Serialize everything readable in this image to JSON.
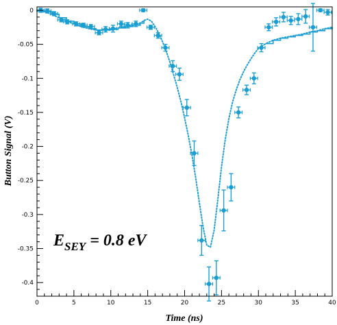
{
  "colors": {
    "series": "#1a9ed2",
    "axis": "#000000",
    "background": "#ffffff"
  },
  "annotation": {
    "text_main": "E",
    "text_sub": "SEY",
    "text_rest": " = 0.8 eV"
  },
  "chart_data": {
    "type": "scatter",
    "title": "",
    "xlabel": "Time (ns)",
    "ylabel": "Button Signal (V)",
    "xlim": [
      0,
      40
    ],
    "ylim": [
      -0.42,
      0.005
    ],
    "xticks": [
      0,
      5,
      10,
      15,
      20,
      25,
      30,
      35,
      40
    ],
    "xtick_labels": [
      "0",
      "5",
      "10",
      "15",
      "20",
      "25",
      "30",
      "35",
      "40"
    ],
    "yticks": [
      0,
      -0.05,
      -0.1,
      -0.15,
      -0.2,
      -0.25,
      -0.3,
      -0.35,
      -0.4
    ],
    "ytick_labels": [
      "0",
      "-0.05",
      "-0.1",
      "-0.15",
      "-0.2",
      "-0.25",
      "-0.3",
      "-0.35",
      "-0.4"
    ],
    "grid": false,
    "series": [
      {
        "kind": "measured",
        "points": [
          {
            "x": 0.5,
            "y": 0.0,
            "xerr": 0.5,
            "yerr": 0.003
          },
          {
            "x": 1.4,
            "y": -0.001,
            "xerr": 0.5,
            "yerr": 0.003
          },
          {
            "x": 2.3,
            "y": -0.005,
            "xerr": 0.5,
            "yerr": 0.003
          },
          {
            "x": 3.3,
            "y": -0.014,
            "xerr": 0.5,
            "yerr": 0.003
          },
          {
            "x": 4.1,
            "y": -0.017,
            "xerr": 0.5,
            "yerr": 0.003
          },
          {
            "x": 5.3,
            "y": -0.02,
            "xerr": 0.5,
            "yerr": 0.003
          },
          {
            "x": 6.3,
            "y": -0.022,
            "xerr": 0.5,
            "yerr": 0.003
          },
          {
            "x": 7.3,
            "y": -0.024,
            "xerr": 0.5,
            "yerr": 0.003
          },
          {
            "x": 8.4,
            "y": -0.033,
            "xerr": 0.5,
            "yerr": 0.003
          },
          {
            "x": 9.3,
            "y": -0.028,
            "xerr": 0.5,
            "yerr": 0.004
          },
          {
            "x": 10.3,
            "y": -0.027,
            "xerr": 0.5,
            "yerr": 0.005
          },
          {
            "x": 11.4,
            "y": -0.02,
            "xerr": 0.5,
            "yerr": 0.004
          },
          {
            "x": 12.3,
            "y": -0.022,
            "xerr": 0.5,
            "yerr": 0.004
          },
          {
            "x": 13.4,
            "y": -0.02,
            "xerr": 0.5,
            "yerr": 0.004
          },
          {
            "x": 14.4,
            "y": 0.0,
            "xerr": 0.5,
            "yerr": 0.002
          },
          {
            "x": 15.4,
            "y": -0.025,
            "xerr": 0.5,
            "yerr": 0.003
          },
          {
            "x": 16.4,
            "y": -0.037,
            "xerr": 0.5,
            "yerr": 0.004
          },
          {
            "x": 17.4,
            "y": -0.055,
            "xerr": 0.5,
            "yerr": 0.005
          },
          {
            "x": 18.4,
            "y": -0.082,
            "xerr": 0.5,
            "yerr": 0.008
          },
          {
            "x": 19.3,
            "y": -0.094,
            "xerr": 0.5,
            "yerr": 0.009
          },
          {
            "x": 20.3,
            "y": -0.143,
            "xerr": 0.5,
            "yerr": 0.012
          },
          {
            "x": 21.3,
            "y": -0.21,
            "xerr": 0.5,
            "yerr": 0.018
          },
          {
            "x": 22.3,
            "y": -0.338,
            "xerr": 0.5,
            "yerr": 0.022
          },
          {
            "x": 23.3,
            "y": -0.402,
            "xerr": 0.5,
            "yerr": 0.025
          },
          {
            "x": 24.3,
            "y": -0.393,
            "xerr": 0.5,
            "yerr": 0.025
          },
          {
            "x": 25.3,
            "y": -0.294,
            "xerr": 0.5,
            "yerr": 0.03
          },
          {
            "x": 26.3,
            "y": -0.26,
            "xerr": 0.5,
            "yerr": 0.02
          },
          {
            "x": 27.3,
            "y": -0.15,
            "xerr": 0.5,
            "yerr": 0.008
          },
          {
            "x": 28.4,
            "y": -0.117,
            "xerr": 0.5,
            "yerr": 0.007
          },
          {
            "x": 29.4,
            "y": -0.1,
            "xerr": 0.5,
            "yerr": 0.008
          },
          {
            "x": 30.4,
            "y": -0.055,
            "xerr": 0.5,
            "yerr": 0.006
          },
          {
            "x": 31.4,
            "y": -0.025,
            "xerr": 0.5,
            "yerr": 0.005
          },
          {
            "x": 32.4,
            "y": -0.017,
            "xerr": 0.5,
            "yerr": 0.006
          },
          {
            "x": 33.4,
            "y": -0.01,
            "xerr": 0.5,
            "yerr": 0.007
          },
          {
            "x": 34.4,
            "y": -0.015,
            "xerr": 0.5,
            "yerr": 0.006
          },
          {
            "x": 35.4,
            "y": -0.013,
            "xerr": 0.5,
            "yerr": 0.008
          },
          {
            "x": 36.4,
            "y": -0.009,
            "xerr": 0.5,
            "yerr": 0.01
          },
          {
            "x": 37.4,
            "y": -0.025,
            "xerr": 0.5,
            "yerr": 0.035
          },
          {
            "x": 38.4,
            "y": 0.0,
            "xerr": 0.5,
            "yerr": 0.002
          },
          {
            "x": 39.4,
            "y": -0.003,
            "xerr": 0.5,
            "yerr": 0.004
          }
        ]
      },
      {
        "kind": "simulated",
        "points": [
          [
            0,
            -0.001
          ],
          [
            1,
            -0.002
          ],
          [
            2,
            -0.006
          ],
          [
            3,
            -0.011
          ],
          [
            4,
            -0.016
          ],
          [
            5,
            -0.02
          ],
          [
            6,
            -0.024
          ],
          [
            7,
            -0.027
          ],
          [
            8,
            -0.029
          ],
          [
            9,
            -0.029
          ],
          [
            10,
            -0.028
          ],
          [
            11,
            -0.026
          ],
          [
            12,
            -0.024
          ],
          [
            13,
            -0.022
          ],
          [
            14,
            -0.019
          ],
          [
            14.5,
            -0.015
          ],
          [
            15,
            -0.013
          ],
          [
            15.5,
            -0.016
          ],
          [
            16,
            -0.024
          ],
          [
            16.5,
            -0.034
          ],
          [
            17,
            -0.046
          ],
          [
            17.5,
            -0.06
          ],
          [
            18,
            -0.076
          ],
          [
            18.5,
            -0.094
          ],
          [
            19,
            -0.113
          ],
          [
            19.5,
            -0.134
          ],
          [
            20,
            -0.158
          ],
          [
            20.5,
            -0.184
          ],
          [
            21,
            -0.213
          ],
          [
            21.5,
            -0.246
          ],
          [
            22,
            -0.283
          ],
          [
            22.5,
            -0.318
          ],
          [
            23,
            -0.345
          ],
          [
            23.5,
            -0.348
          ],
          [
            24,
            -0.323
          ],
          [
            24.5,
            -0.278
          ],
          [
            25,
            -0.23
          ],
          [
            25.5,
            -0.19
          ],
          [
            26,
            -0.159
          ],
          [
            26.5,
            -0.135
          ],
          [
            27,
            -0.117
          ],
          [
            27.5,
            -0.102
          ],
          [
            28,
            -0.09
          ],
          [
            28.5,
            -0.08
          ],
          [
            29,
            -0.071
          ],
          [
            29.5,
            -0.063
          ],
          [
            30,
            -0.056
          ],
          [
            31,
            -0.049
          ],
          [
            32,
            -0.044
          ],
          [
            33,
            -0.041
          ],
          [
            34,
            -0.039
          ],
          [
            35,
            -0.037
          ],
          [
            36,
            -0.035
          ],
          [
            37,
            -0.032
          ],
          [
            38,
            -0.03
          ],
          [
            39,
            -0.027
          ],
          [
            40,
            -0.025
          ]
        ]
      }
    ]
  }
}
